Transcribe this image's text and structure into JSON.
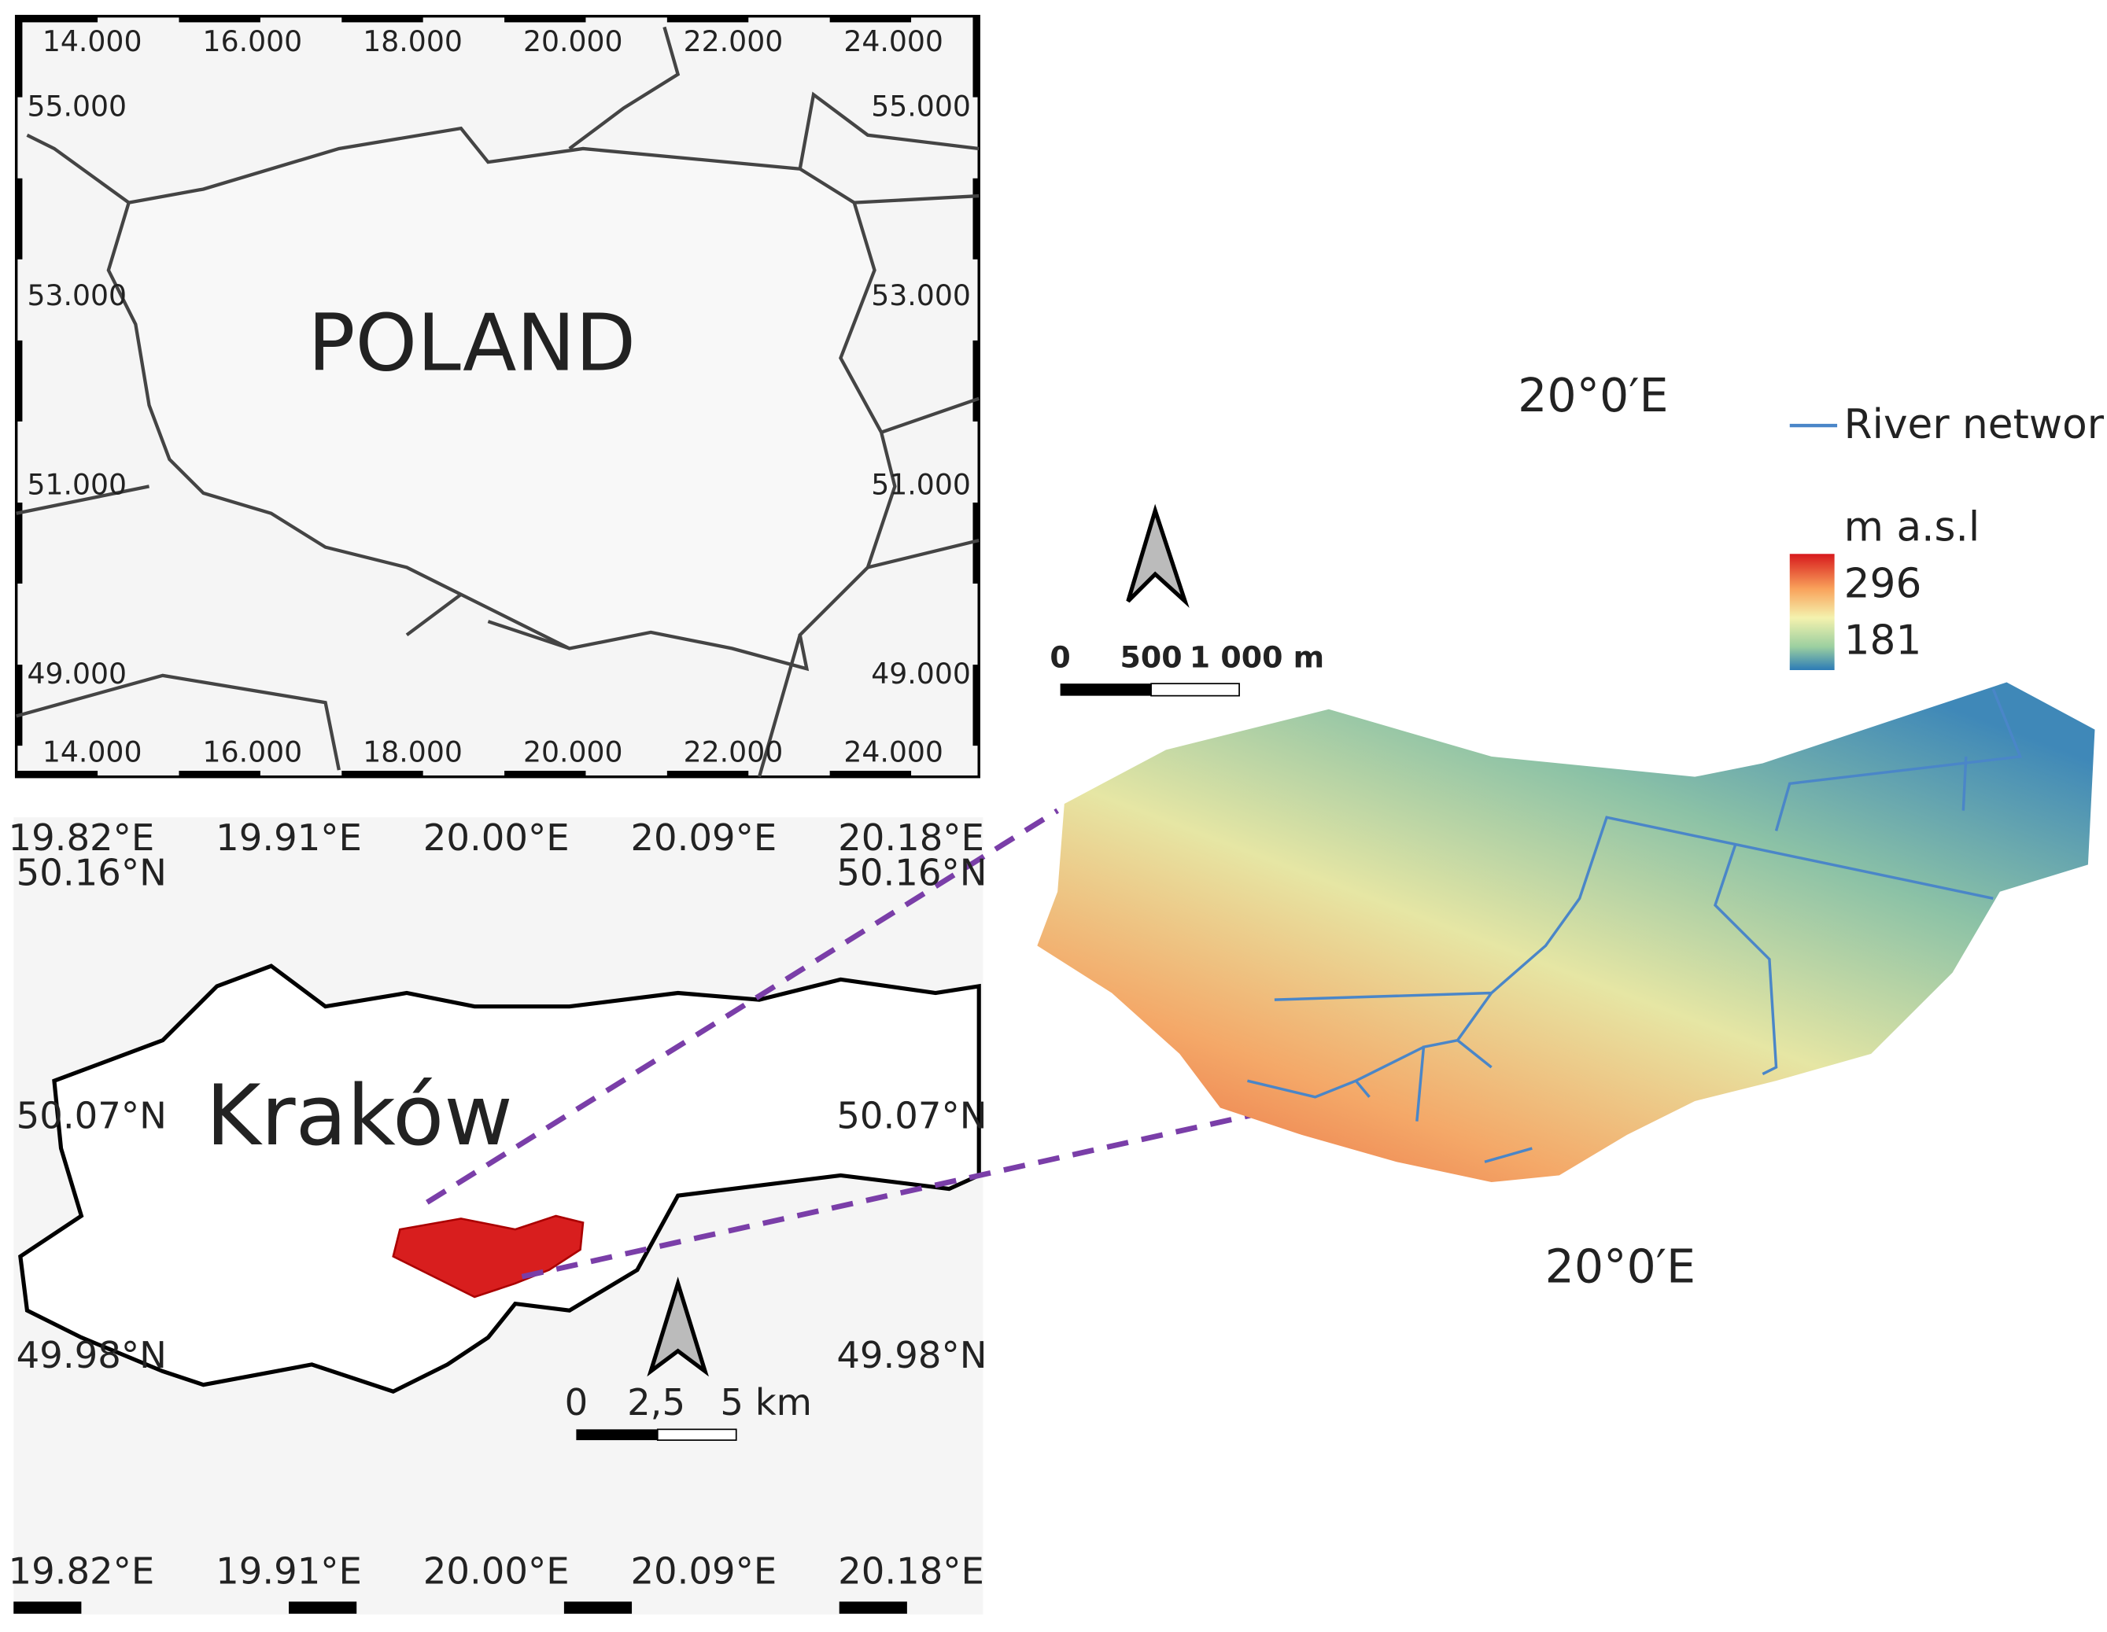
{
  "poland_map": {
    "label": "POLAND",
    "top_ticks": [
      "14.000",
      "16.000",
      "18.000",
      "20.000",
      "22.000",
      "24.000"
    ],
    "bottom_ticks": [
      "14.000",
      "16.000",
      "18.000",
      "20.000",
      "22.000",
      "24.000"
    ],
    "left_ticks": [
      "55.000",
      "53.000",
      "51.000",
      "49.000"
    ],
    "right_ticks": [
      "55.000",
      "53.000",
      "51.000",
      "49.000"
    ]
  },
  "krakow_map": {
    "label": "Kraków",
    "top_ticks": [
      "19.82°E",
      "19.91°E",
      "20.00°E",
      "20.09°E",
      "20.18°E"
    ],
    "bottom_ticks": [
      "19.82°E",
      "19.91°E",
      "20.00°E",
      "20.09°E",
      "20.18°E"
    ],
    "left_ticks": [
      "50.16°N",
      "50.07°N",
      "49.98°N"
    ],
    "right_ticks": [
      "50.16°N",
      "50.07°N",
      "49.98°N"
    ],
    "scale_bar": [
      "0",
      "2,5",
      "5 km"
    ]
  },
  "elevation_map": {
    "top_label": "20°0′E",
    "bottom_label": "20°0′E",
    "scale_bar": [
      "0",
      "500",
      "1 000 m"
    ],
    "legend": {
      "river": "River network",
      "unit": "m a.s.l",
      "max": "296",
      "min": "181"
    }
  }
}
